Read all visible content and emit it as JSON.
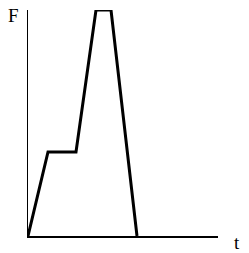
{
  "chart_data": {
    "type": "line",
    "x_label": "t",
    "y_label": "F",
    "x": [
      0,
      2,
      4.8,
      6.8,
      8.3,
      10.9
    ],
    "values": [
      0,
      8.4,
      8.4,
      22.6,
      22.6,
      0
    ],
    "color": "#000000",
    "xlim": [
      0,
      19
    ],
    "ylim": [
      0,
      22.6
    ],
    "xticks": [],
    "yticks": [],
    "tick_labels": false,
    "grid": false
  }
}
